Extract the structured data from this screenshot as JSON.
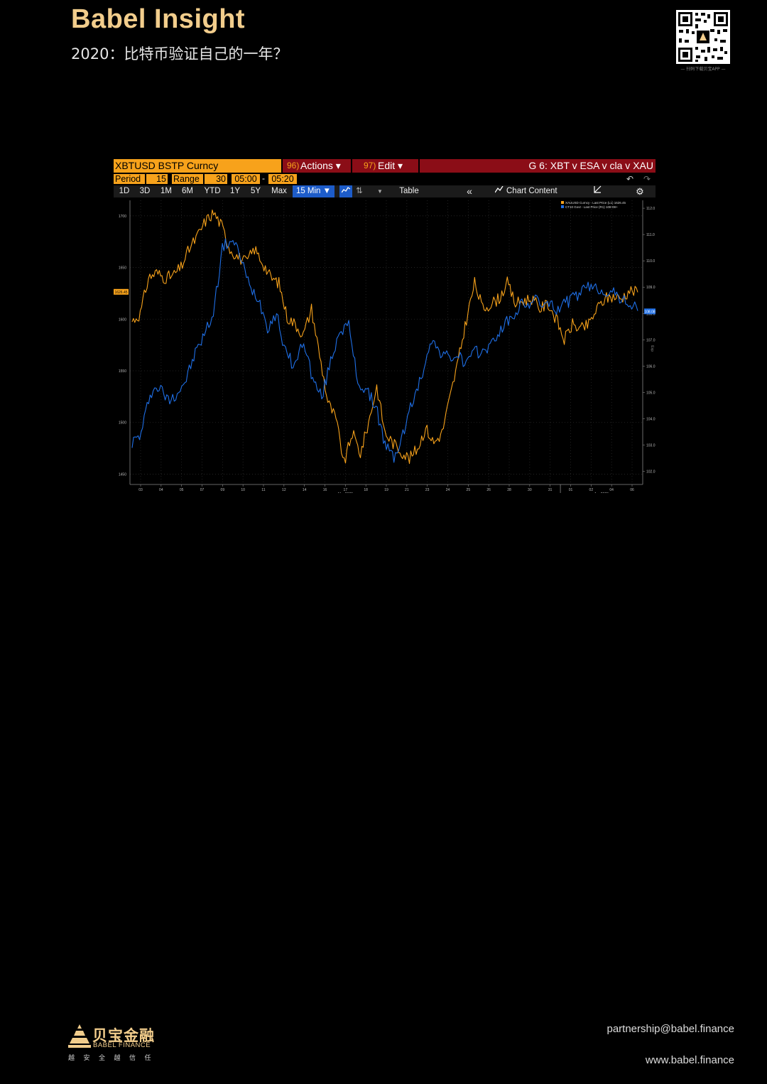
{
  "header": {
    "brand": "Babel Insight",
    "subtitle": "2020：比特币验证自己的一年？",
    "qr_caption": "— 扫码下载贝宝APP —"
  },
  "terminal": {
    "security": "XBTUSD BSTP Curncy",
    "actions_num": "96)",
    "actions_label": "Actions ▾",
    "edit_num": "97)",
    "edit_label": "Edit ▾",
    "chart_name": "G 6: XBT v ESA v cla v XAU",
    "period_label": "Period",
    "period_value": "15",
    "range_label": "Range",
    "range_value": "30",
    "start_time": "05:00",
    "dash": "-",
    "end_time": "05:20",
    "tabs": [
      "1D",
      "3D",
      "1M",
      "6M",
      "YTD",
      "1Y",
      "5Y",
      "Max"
    ],
    "interval": "15 Min ▼",
    "table_label": "Table",
    "chart_content": "Chart Content",
    "colors": {
      "gold": "#f7a21b",
      "blue": "#1f6fe6",
      "red": "#8b0d17"
    }
  },
  "chart_data": {
    "type": "line",
    "legend": [
      "XAUUSD Curncy - Last Price (L1) 1626.45",
      "CT10 Govt - Last Price (R1)    108-08+"
    ],
    "left_ticks": [
      "1700",
      "1650",
      "1600",
      "1550",
      "1500",
      "1450"
    ],
    "right_ticks": [
      "112.0",
      "111.0",
      "110.0",
      "109.0",
      "108.0",
      "107.0",
      "106.0",
      "105.0",
      "104.0",
      "103.0",
      "102.0"
    ],
    "x_ticks": [
      "03",
      "04",
      "05",
      "07",
      "09",
      "10",
      "11",
      "12",
      "14",
      "16",
      "17",
      "18",
      "19",
      "21",
      "23",
      "24",
      "25",
      "26",
      "28",
      "30",
      "31",
      "01",
      "02",
      "04",
      "06"
    ],
    "month_labels": [
      "Mar 2020",
      "Apr 2020"
    ],
    "left_last_value": "1626.45",
    "right_last_value": "108.08",
    "right_axis_label": "Exp",
    "ylim_left": [
      1440,
      1715
    ],
    "ylim_right": [
      101.5,
      112.3
    ],
    "series": [
      {
        "name": "XAUUSD Curncy - Last Price (L1) 1626.45",
        "axis": "left",
        "color": "#f7a21b",
        "values": [
          1598,
          1605,
          1640,
          1645,
          1640,
          1642,
          1650,
          1668,
          1680,
          1695,
          1703,
          1690,
          1668,
          1660,
          1655,
          1668,
          1655,
          1640,
          1635,
          1602,
          1595,
          1585,
          1610,
          1565,
          1520,
          1503,
          1460,
          1490,
          1470,
          1500,
          1535,
          1490,
          1480,
          1472,
          1465,
          1475,
          1495,
          1480,
          1490,
          1525,
          1560,
          1600,
          1635,
          1610,
          1615,
          1620,
          1635,
          1615,
          1618,
          1620,
          1610,
          1615,
          1600,
          1580,
          1595,
          1590,
          1595,
          1610,
          1620,
          1622,
          1620,
          1628,
          1626
        ]
      },
      {
        "name": "CT10 Govt - Last Price (R1) 108-08+",
        "axis": "right",
        "color": "#1f6fe6",
        "values": [
          103.1,
          103.4,
          105.0,
          105.2,
          104.7,
          105.0,
          105.5,
          106.5,
          107.2,
          108.0,
          110.5,
          110.8,
          110.2,
          109.0,
          108.6,
          107.5,
          108.0,
          106.5,
          106.0,
          107.0,
          105.5,
          104.8,
          106.2,
          107.4,
          107.5,
          105.4,
          105.0,
          104.5,
          103.0,
          102.5,
          103.4,
          104.6,
          105.5,
          107.0,
          106.6,
          106.3,
          106.4,
          106.1,
          106.5,
          106.6,
          106.9,
          107.5,
          107.8,
          108.3,
          108.4,
          108.5,
          108.3,
          108.2,
          108.4,
          108.6,
          108.9,
          109.0,
          108.9,
          108.8,
          108.6,
          108.4,
          108.1
        ]
      }
    ]
  },
  "footer": {
    "logo_cn": "贝宝金融",
    "logo_en": "BABEL FINANCE",
    "slogan": "越安全越信任",
    "email": "partnership@babel.finance",
    "website": "www.babel.finance"
  }
}
